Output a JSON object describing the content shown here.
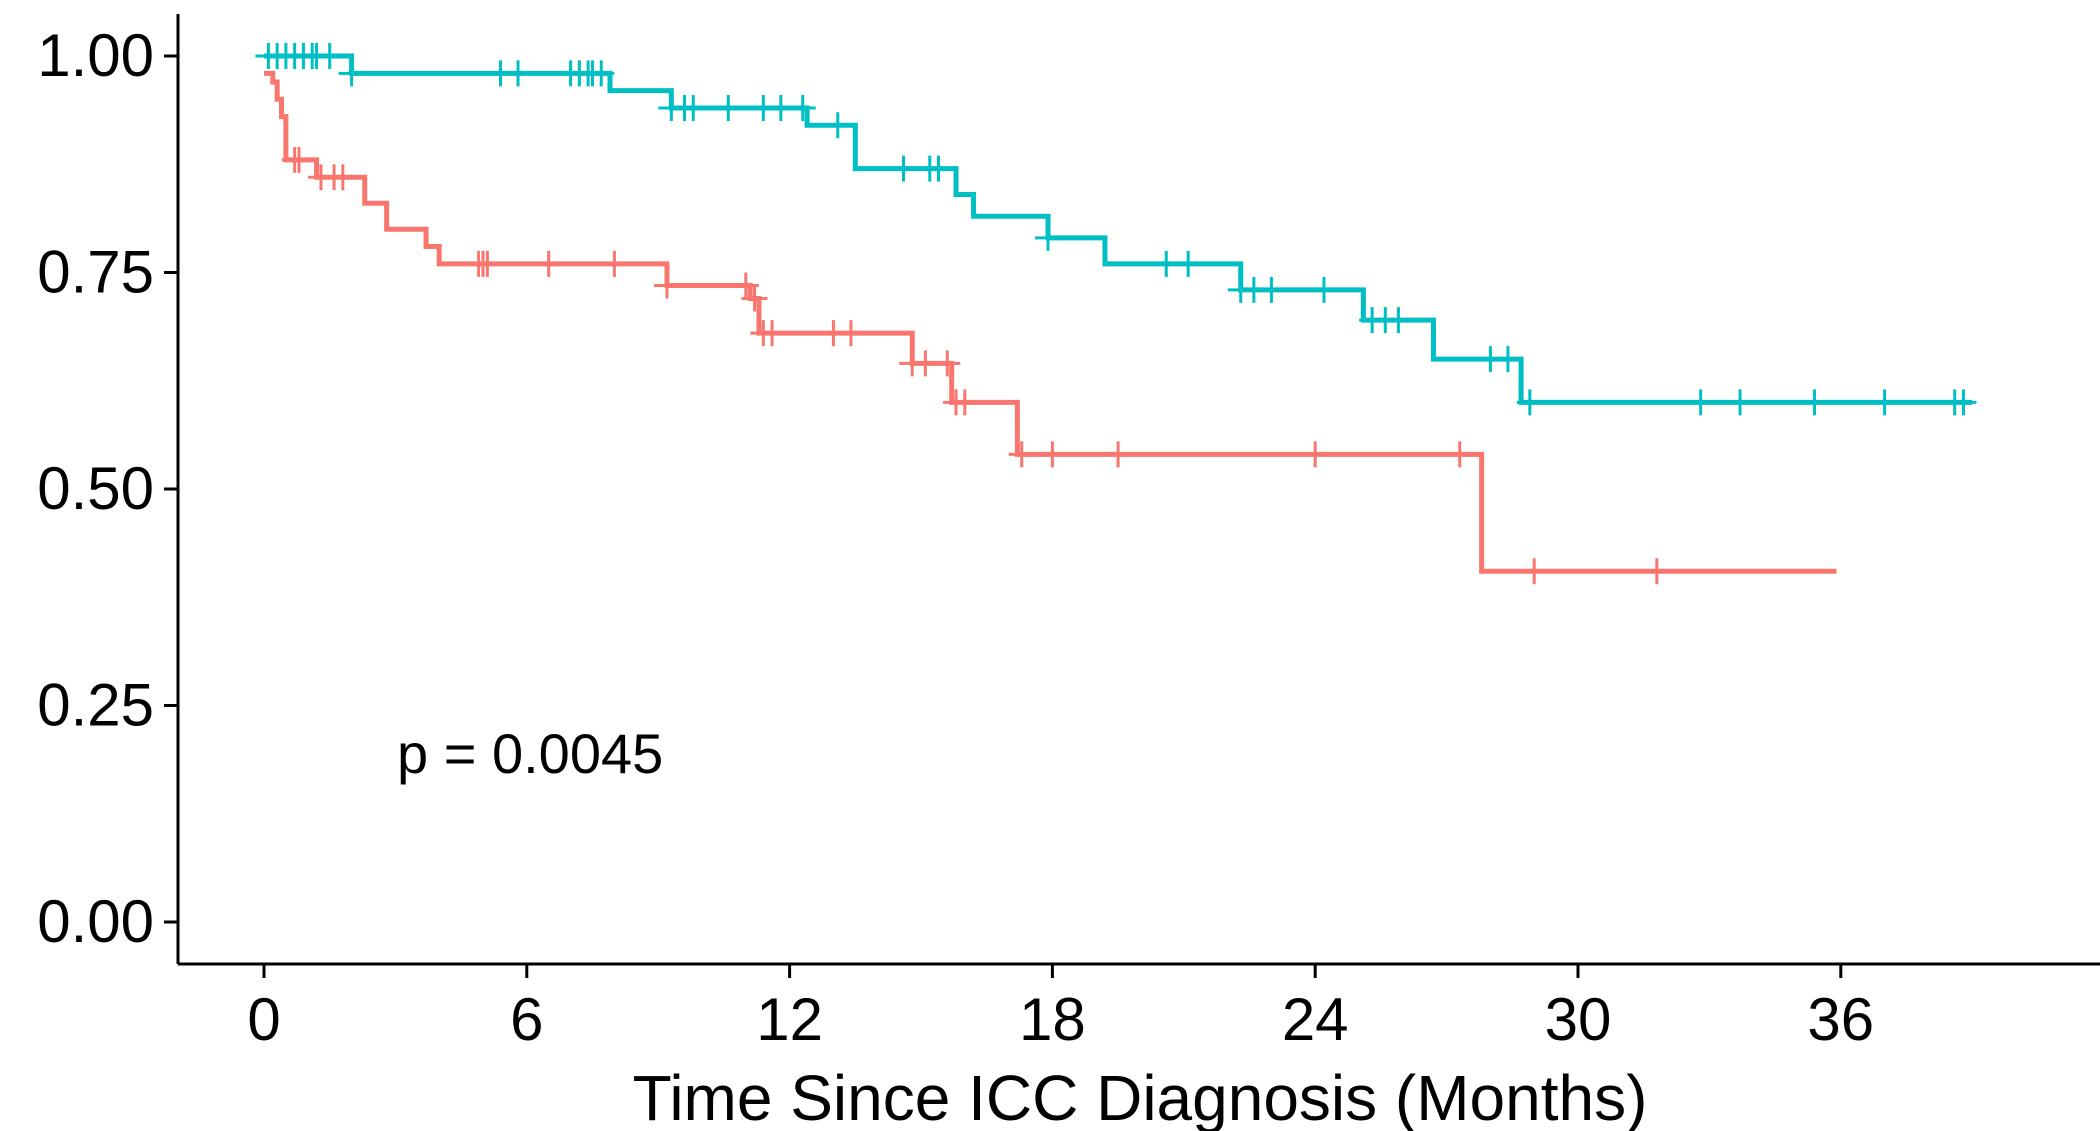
{
  "chart_data": {
    "type": "line",
    "title": "",
    "xlabel": "Time Since ICC Diagnosis (Months)",
    "ylabel": "",
    "xlim": [
      -2,
      42
    ],
    "ylim": [
      -0.05,
      1.05
    ],
    "x_ticks": [
      0,
      6,
      12,
      18,
      24,
      30,
      36
    ],
    "x_tick_labels": [
      "0",
      "6",
      "12",
      "18",
      "24",
      "30",
      "36"
    ],
    "y_ticks": [
      0,
      0.25,
      0.5,
      0.75,
      1.0
    ],
    "y_tick_labels": [
      "0.00",
      "0.25",
      "0.50",
      "0.75",
      "1.00"
    ],
    "grid": false,
    "legend": "none",
    "annotations": [
      {
        "text": "p = 0.0045",
        "x": 3.0,
        "y": 0.19
      }
    ],
    "series": [
      {
        "color": "#00BFC4",
        "steps": [
          [
            0,
            1.0
          ],
          [
            2.0,
            0.98
          ],
          [
            7.9,
            0.96
          ],
          [
            9.3,
            0.94
          ],
          [
            12.4,
            0.92
          ],
          [
            13.5,
            0.87
          ],
          [
            15.8,
            0.84
          ],
          [
            16.2,
            0.815
          ],
          [
            17.9,
            0.79
          ],
          [
            19.2,
            0.76
          ],
          [
            22.3,
            0.73
          ],
          [
            25.1,
            0.695
          ],
          [
            26.7,
            0.65
          ],
          [
            28.7,
            0.6
          ],
          [
            39.0,
            0.6
          ]
        ],
        "censor_x": [
          0.1,
          0.3,
          0.5,
          0.7,
          0.9,
          1.1,
          1.2,
          1.5,
          2.0,
          5.4,
          5.8,
          7.0,
          7.2,
          7.4,
          7.5,
          7.7,
          9.3,
          9.6,
          9.8,
          10.6,
          11.4,
          11.8,
          12.3,
          13.1,
          14.6,
          15.2,
          15.4,
          17.9,
          20.6,
          21.1,
          22.3,
          22.6,
          23.0,
          24.2,
          25.3,
          25.6,
          25.9,
          28.0,
          28.4,
          28.9,
          32.8,
          33.7,
          35.4,
          37.0,
          38.6,
          38.8
        ]
      },
      {
        "color": "#F8766D",
        "steps": [
          [
            0,
            0.98
          ],
          [
            0.2,
            0.97
          ],
          [
            0.3,
            0.95
          ],
          [
            0.4,
            0.93
          ],
          [
            0.5,
            0.88
          ],
          [
            1.2,
            0.86
          ],
          [
            2.3,
            0.83
          ],
          [
            2.8,
            0.8
          ],
          [
            3.7,
            0.78
          ],
          [
            4.0,
            0.76
          ],
          [
            9.2,
            0.735
          ],
          [
            11.1,
            0.72
          ],
          [
            11.3,
            0.68
          ],
          [
            14.8,
            0.645
          ],
          [
            15.7,
            0.6
          ],
          [
            17.2,
            0.54
          ],
          [
            27.8,
            0.405
          ],
          [
            35.9,
            0.405
          ]
        ],
        "censor_x": [
          0.7,
          0.8,
          1.3,
          1.6,
          1.8,
          4.9,
          5.0,
          5.1,
          6.5,
          8.0,
          9.2,
          11.0,
          11.2,
          11.4,
          11.6,
          13.0,
          13.4,
          14.8,
          15.1,
          15.6,
          15.8,
          16.0,
          17.3,
          18.0,
          19.5,
          24.0,
          27.3,
          29.0,
          31.8
        ]
      }
    ]
  }
}
